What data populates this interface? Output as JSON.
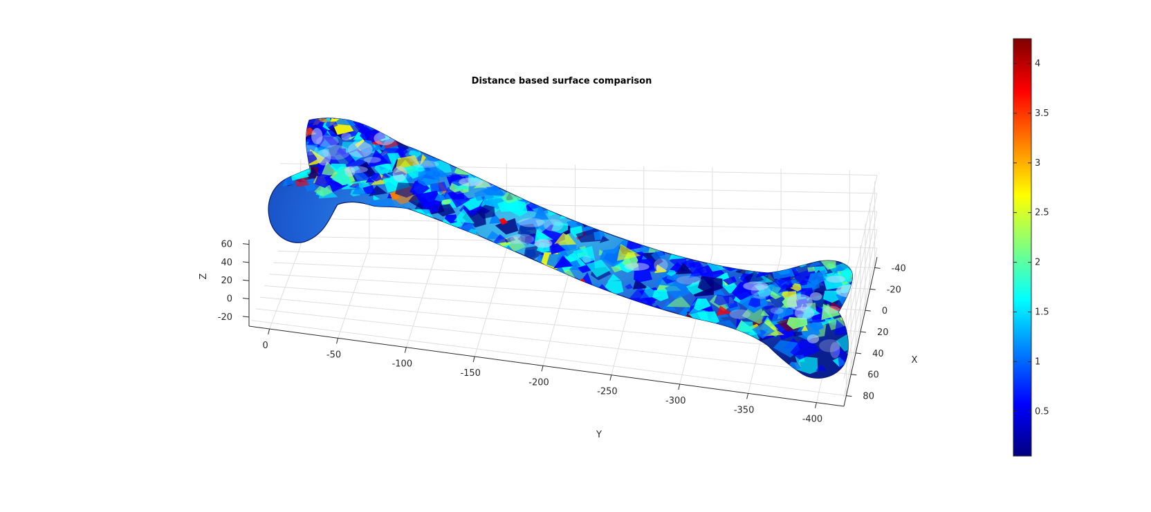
{
  "chart_data": {
    "type": "3d-surface",
    "title": "Distance based surface comparison",
    "xlabel": "X",
    "ylabel": "Y",
    "zlabel": "Z",
    "x_ticks": [
      "-40",
      "-20",
      "0",
      "20",
      "40",
      "60",
      "80"
    ],
    "y_ticks": [
      "0",
      "-50",
      "-100",
      "-150",
      "-200",
      "-250",
      "-300",
      "-350",
      "-400"
    ],
    "z_ticks": [
      "60",
      "40",
      "20",
      "0",
      "-20"
    ],
    "xlim": [
      -50,
      90
    ],
    "ylim": [
      15,
      -420
    ],
    "zlim": [
      -30,
      65
    ],
    "grid": true,
    "colormap": "jet",
    "colorbar": {
      "range": [
        0.05,
        4.25
      ],
      "ticks": [
        "4",
        "3.5",
        "3",
        "2.5",
        "2",
        "1.5",
        "1",
        "0.5"
      ],
      "tick_values": [
        4,
        3.5,
        3,
        2.5,
        2,
        1.5,
        1,
        0.5
      ]
    },
    "colors": {
      "colormap_stops": [
        "#00007f",
        "#0000ff",
        "#007fff",
        "#00ffff",
        "#7fff7f",
        "#ffff00",
        "#ff7f00",
        "#ff0000",
        "#7f0000"
      ],
      "surface_base": "#1f5fd6",
      "grid": "#dedede",
      "axis": "#262626"
    }
  }
}
